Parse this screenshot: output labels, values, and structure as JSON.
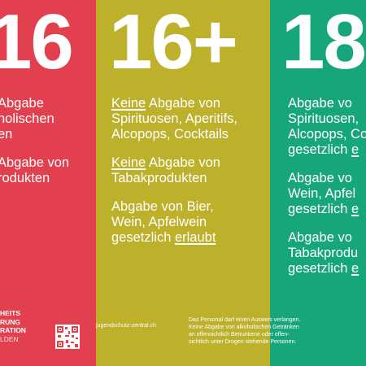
{
  "columns": [
    {
      "number": "16",
      "color": "#e2404f",
      "blocks": [
        [
          [
            {
              "t": "Abgabe"
            }
          ],
          [
            {
              "t": "holischen"
            }
          ],
          [
            {
              "t": "en"
            }
          ]
        ],
        [
          [
            {
              "t": "Abgabe von"
            }
          ],
          [
            {
              "t": "rodukten"
            }
          ]
        ]
      ]
    },
    {
      "number": "16+",
      "color": "#bdb02b",
      "blocks": [
        [
          [
            {
              "t": "Keine",
              "u": true
            },
            {
              "t": " Abgabe von"
            }
          ],
          [
            {
              "t": "Spirituosen, Aperitifs,"
            }
          ],
          [
            {
              "t": "Alcopops, Cocktails"
            }
          ]
        ],
        [
          [
            {
              "t": "Keine",
              "u": true
            },
            {
              "t": " Abgabe von"
            }
          ],
          [
            {
              "t": "Tabakprodukten"
            }
          ]
        ],
        [
          [
            {
              "t": "Abgabe von Bier,"
            }
          ],
          [
            {
              "t": "Wein, Apfelwein"
            }
          ],
          [
            {
              "t": "gesetzlich "
            },
            {
              "t": "erlaubt",
              "u": true
            }
          ]
        ]
      ]
    },
    {
      "number": "18",
      "color": "#17a57c",
      "blocks": [
        [
          [
            {
              "t": "Abgabe vo"
            }
          ],
          [
            {
              "t": "Spirituosen,"
            }
          ],
          [
            {
              "t": "Alcopops, Co"
            }
          ],
          [
            {
              "t": "gesetzlich "
            },
            {
              "t": "e",
              "u": true
            }
          ]
        ],
        [
          [
            {
              "t": "Abgabe vo"
            }
          ],
          [
            {
              "t": "Wein, Apfel"
            }
          ],
          [
            {
              "t": "gesetzlich "
            },
            {
              "t": "e",
              "u": true
            }
          ]
        ],
        [
          [
            {
              "t": "Abgabe vo"
            }
          ],
          [
            {
              "t": "Tabakprodu"
            }
          ],
          [
            {
              "t": "gesetzlich "
            },
            {
              "t": "e",
              "u": true
            }
          ]
        ]
      ]
    }
  ],
  "footer": {
    "logo_lines": [
      "HEITS",
      "RUNG",
      "RATION",
      "LDEN"
    ],
    "website": "jugendschutz-zentral.ch",
    "note": [
      "Das Personal darf einen Ausweis verlangen.",
      "Keine Abgabe von alkoholischen Getränken",
      "an offensichtlich Betrunkene oder offen-",
      "sichtlich unter Drogen stehende Personen."
    ]
  }
}
